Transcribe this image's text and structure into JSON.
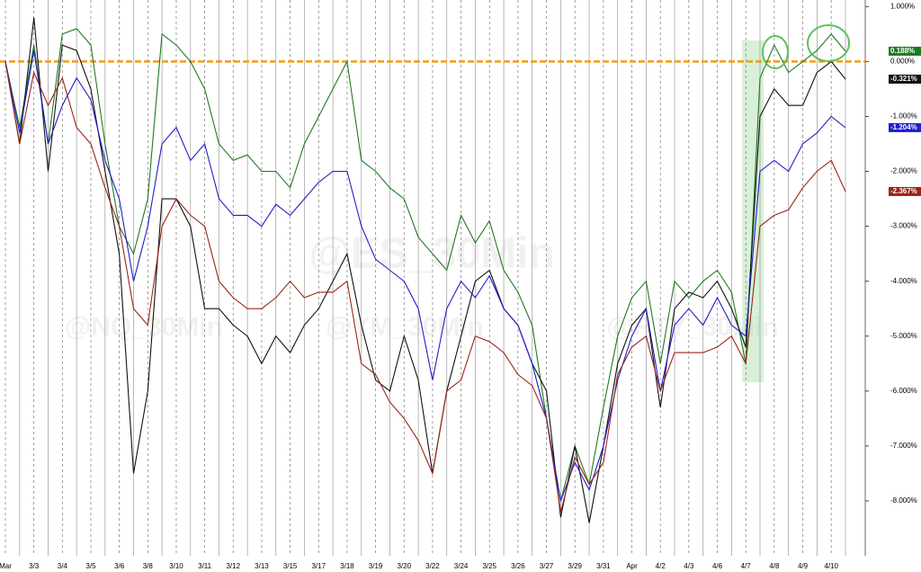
{
  "chart_data": {
    "type": "line",
    "categories": [
      "Mar",
      null,
      "3/3",
      null,
      "3/4",
      null,
      "3/5",
      null,
      "3/6",
      null,
      "3/8",
      null,
      "3/10",
      null,
      "3/11",
      null,
      "3/12",
      null,
      "3/13",
      null,
      "3/15",
      null,
      "3/17",
      null,
      "3/18",
      null,
      "3/19",
      null,
      "3/20",
      null,
      "3/22",
      null,
      "3/24",
      null,
      "3/25",
      null,
      "3/26",
      null,
      "3/27",
      null,
      "3/29",
      null,
      "3/31",
      null,
      "Apr",
      null,
      "4/2",
      null,
      "4/3",
      null,
      "4/6",
      null,
      "4/7",
      null,
      "4/8",
      null,
      "4/9",
      null,
      "4/10",
      null
    ],
    "series": [
      {
        "color": "#1f7a1f",
        "end_label": "0.188%",
        "values": [
          0.0,
          -1.2,
          0.3,
          -1.5,
          0.5,
          0.6,
          0.3,
          -1.5,
          -3.0,
          -3.5,
          -2.5,
          0.5,
          0.3,
          0.0,
          -0.5,
          -1.5,
          -1.8,
          -1.7,
          -2.0,
          -2.0,
          -2.3,
          -1.5,
          -1.0,
          -0.5,
          0.0,
          -1.8,
          -2.0,
          -2.3,
          -2.5,
          -3.2,
          -3.5,
          -3.8,
          -2.8,
          -3.3,
          -2.9,
          -3.8,
          -4.2,
          -4.8,
          -6.5,
          -8.0,
          -7.0,
          -7.7,
          -6.3,
          -5.0,
          -4.3,
          -4.0,
          -5.5,
          -4.0,
          -4.3,
          -4.0,
          -3.8,
          -4.2,
          -5.5,
          -0.3,
          0.3,
          -0.2,
          0.0,
          0.2,
          0.5,
          0.188
        ]
      },
      {
        "color": "#111111",
        "end_label": "-0.321%",
        "values": [
          0.0,
          -1.5,
          0.8,
          -2.0,
          0.3,
          0.2,
          -0.5,
          -2.0,
          -3.5,
          -7.5,
          -6.0,
          -2.5,
          -2.5,
          -3.0,
          -4.5,
          -4.5,
          -4.8,
          -5.0,
          -5.5,
          -5.0,
          -5.3,
          -4.8,
          -4.5,
          -4.0,
          -3.5,
          -4.8,
          -5.8,
          -6.0,
          -5.0,
          -5.8,
          -7.5,
          -6.0,
          -5.0,
          -4.0,
          -3.8,
          -4.5,
          -4.8,
          -5.5,
          -6.0,
          -8.3,
          -7.0,
          -8.4,
          -7.0,
          -5.5,
          -4.8,
          -4.5,
          -6.3,
          -4.5,
          -4.2,
          -4.3,
          -4.0,
          -4.5,
          -5.2,
          -1.0,
          -0.5,
          -0.8,
          -0.8,
          -0.2,
          0.0,
          -0.321
        ]
      },
      {
        "color": "#1f1fc8",
        "end_label": "-1.204%",
        "values": [
          0.0,
          -1.3,
          0.2,
          -1.5,
          -0.8,
          -0.3,
          -0.7,
          -1.8,
          -2.5,
          -4.0,
          -3.0,
          -1.5,
          -1.2,
          -1.8,
          -1.5,
          -2.5,
          -2.8,
          -2.8,
          -3.0,
          -2.6,
          -2.8,
          -2.5,
          -2.2,
          -2.0,
          -2.0,
          -3.0,
          -3.6,
          -3.8,
          -4.0,
          -4.5,
          -5.8,
          -4.5,
          -4.0,
          -4.3,
          -3.9,
          -4.5,
          -4.8,
          -5.5,
          -6.5,
          -8.0,
          -7.3,
          -7.8,
          -7.0,
          -5.8,
          -5.0,
          -4.5,
          -6.0,
          -4.8,
          -4.5,
          -4.8,
          -4.3,
          -4.8,
          -5.0,
          -2.0,
          -1.8,
          -2.0,
          -1.5,
          -1.3,
          -1.0,
          -1.204
        ]
      },
      {
        "color": "#9b2318",
        "end_label": "-2.367%",
        "values": [
          0.0,
          -1.5,
          -0.2,
          -0.8,
          -0.3,
          -1.2,
          -1.5,
          -2.3,
          -3.0,
          -4.5,
          -4.8,
          -3.0,
          -2.5,
          -2.8,
          -3.0,
          -4.0,
          -4.3,
          -4.5,
          -4.5,
          -4.3,
          -4.0,
          -4.3,
          -4.2,
          -4.2,
          -4.0,
          -5.5,
          -5.7,
          -6.2,
          -6.5,
          -6.9,
          -7.5,
          -6.0,
          -5.8,
          -5.0,
          -5.1,
          -5.3,
          -5.7,
          -5.9,
          -6.5,
          -8.2,
          -7.2,
          -7.7,
          -7.3,
          -5.7,
          -5.2,
          -5.0,
          -6.0,
          -5.3,
          -5.3,
          -5.3,
          -5.2,
          -5.0,
          -5.5,
          -3.0,
          -2.8,
          -2.7,
          -2.3,
          -2.0,
          -1.8,
          -2.367
        ]
      }
    ],
    "ylim": [
      -9.0,
      1.12
    ],
    "yticks": [
      {
        "value": 1,
        "label": "1.000%"
      },
      {
        "value": 0,
        "label": "0.000%"
      },
      {
        "value": -1,
        "label": "-1.000%"
      },
      {
        "value": -2,
        "label": "-2.000%"
      },
      {
        "value": -3,
        "label": "-3.000%"
      },
      {
        "value": -4,
        "label": "-4.000%"
      },
      {
        "value": -5,
        "label": "-5.000%"
      },
      {
        "value": -6,
        "label": "-6.000%"
      },
      {
        "value": -7,
        "label": "-7.000%"
      },
      {
        "value": -8,
        "label": "-8.000%"
      }
    ],
    "reference_line": {
      "value": 0,
      "color": "#f39c12"
    },
    "watermarks": [
      "@ES_30Min",
      "@NQ_30Min",
      "@YM_30Min",
      "@RTY_30Min"
    ]
  }
}
